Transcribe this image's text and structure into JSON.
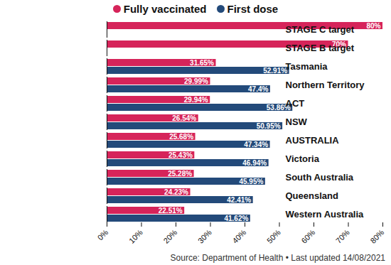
{
  "chart_data": {
    "type": "bar",
    "orientation": "horizontal",
    "categories": [
      "STAGE C target",
      "STAGE B target",
      "Tasmania",
      "Northern Territory",
      "ACT",
      "NSW",
      "AUSTRALIA",
      "Victoria",
      "South Australia",
      "Queensland",
      "Western Australia"
    ],
    "series": [
      {
        "name": "Fully vaccinated",
        "color": "#d6245a",
        "values": [
          80,
          70,
          31.65,
          29.99,
          29.94,
          26.54,
          25.68,
          25.43,
          25.28,
          24.23,
          22.51
        ],
        "value_labels": [
          "80%",
          "70%",
          "31.65%",
          "29.99%",
          "29.94%",
          "26.54%",
          "25.68%",
          "25.43%",
          "25.28%",
          "24.23%",
          "22.51%"
        ]
      },
      {
        "name": "First dose",
        "color": "#234a7a",
        "values": [
          null,
          null,
          52.91,
          47.4,
          53.86,
          50.95,
          47.34,
          46.94,
          45.95,
          42.41,
          41.62
        ],
        "value_labels": [
          null,
          null,
          "52.91%",
          "47.4%",
          "53.86%",
          "50.95%",
          "47.34%",
          "46.94%",
          "45.95%",
          "42.41%",
          "41.62%"
        ]
      }
    ],
    "xlim": [
      0,
      80
    ],
    "xticks": [
      {
        "value": 0,
        "label": "0%"
      },
      {
        "value": 10,
        "label": "10%"
      },
      {
        "value": 20,
        "label": "20%"
      },
      {
        "value": 30,
        "label": "30%"
      },
      {
        "value": 40,
        "label": "40%"
      },
      {
        "value": 50,
        "label": "50%"
      },
      {
        "value": 60,
        "label": "60%"
      },
      {
        "value": 70,
        "label": "70%"
      },
      {
        "value": 80,
        "label": "80%"
      }
    ],
    "grid": false,
    "legend": "top",
    "data_labels": true,
    "caption": "Source: Department of Health • Last updated 14/08/2021"
  }
}
